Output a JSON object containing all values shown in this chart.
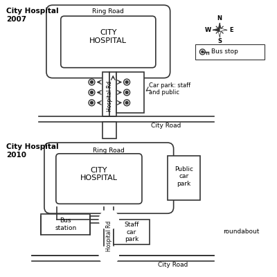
{
  "bg_color": "#ffffff",
  "title_2007": "City Hospital\n2007",
  "title_2010": "City Hospital\n2010",
  "ring_road_label": "Ring Road",
  "city_road_label": "City Road",
  "hospital_rd_label": "Hospital Rd",
  "hospital_label": "CITY\nHOSPITAL",
  "car_park_2007_label": "Car park: staff\nand public",
  "public_car_park_label": "Public\ncar\npark",
  "staff_car_park_label": "Staff\ncar\npark",
  "bus_station_label": "Bus\nstation",
  "bus_stop_legend": "Bus stop",
  "roundabout_legend": "roundabout",
  "compass_N": "N",
  "compass_S": "S",
  "compass_W": "W",
  "compass_E": "E",
  "line_color": "#333333",
  "text_color": "#000000"
}
